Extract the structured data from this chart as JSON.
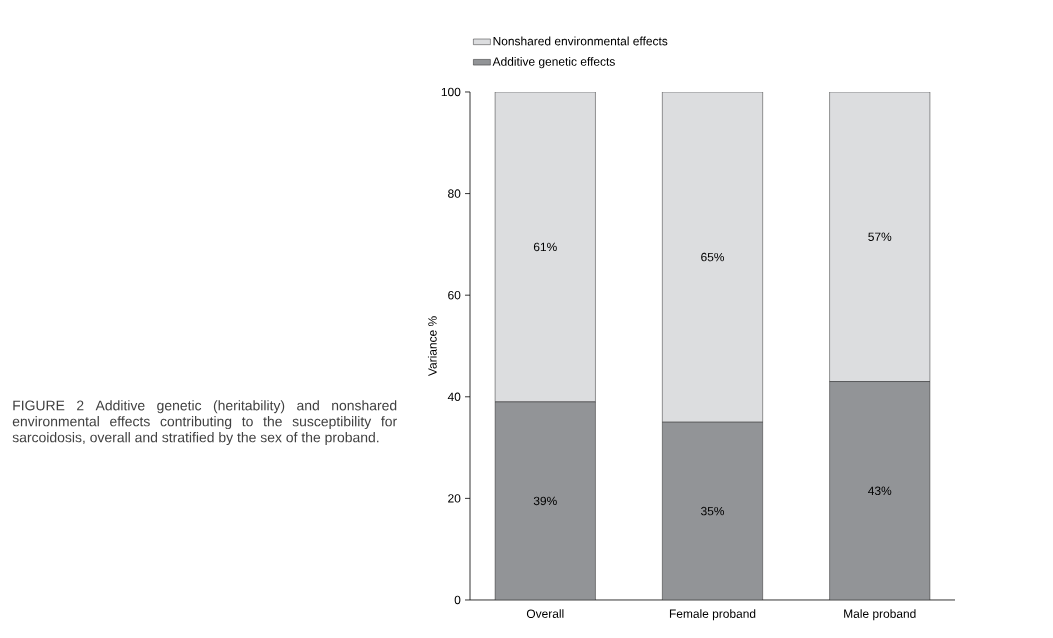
{
  "chart_data": {
    "type": "bar",
    "stacked": true,
    "categories": [
      "Overall",
      "Female proband",
      "Male proband"
    ],
    "series": [
      {
        "name": "Additive genetic effects",
        "color": "#929497",
        "values": [
          39,
          35,
          43
        ],
        "value_labels": [
          "39%",
          "35%",
          "43%"
        ]
      },
      {
        "name": "Nonshared environmental effects",
        "color": "#dcdddf",
        "values": [
          61,
          65,
          57
        ],
        "value_labels": [
          "61%",
          "65%",
          "57%"
        ]
      }
    ],
    "ylabel": "Variance %",
    "ylim": [
      0,
      100
    ],
    "yticks": [
      0,
      20,
      40,
      60,
      80,
      100
    ],
    "legend": "top",
    "grid": false,
    "annotations": [
      "FIGURE 2 Additive genetic (heritability) and nonshared environmental effects contributing to the susceptibility for sarcoidosis, overall and stratified by the sex of the proband."
    ]
  }
}
